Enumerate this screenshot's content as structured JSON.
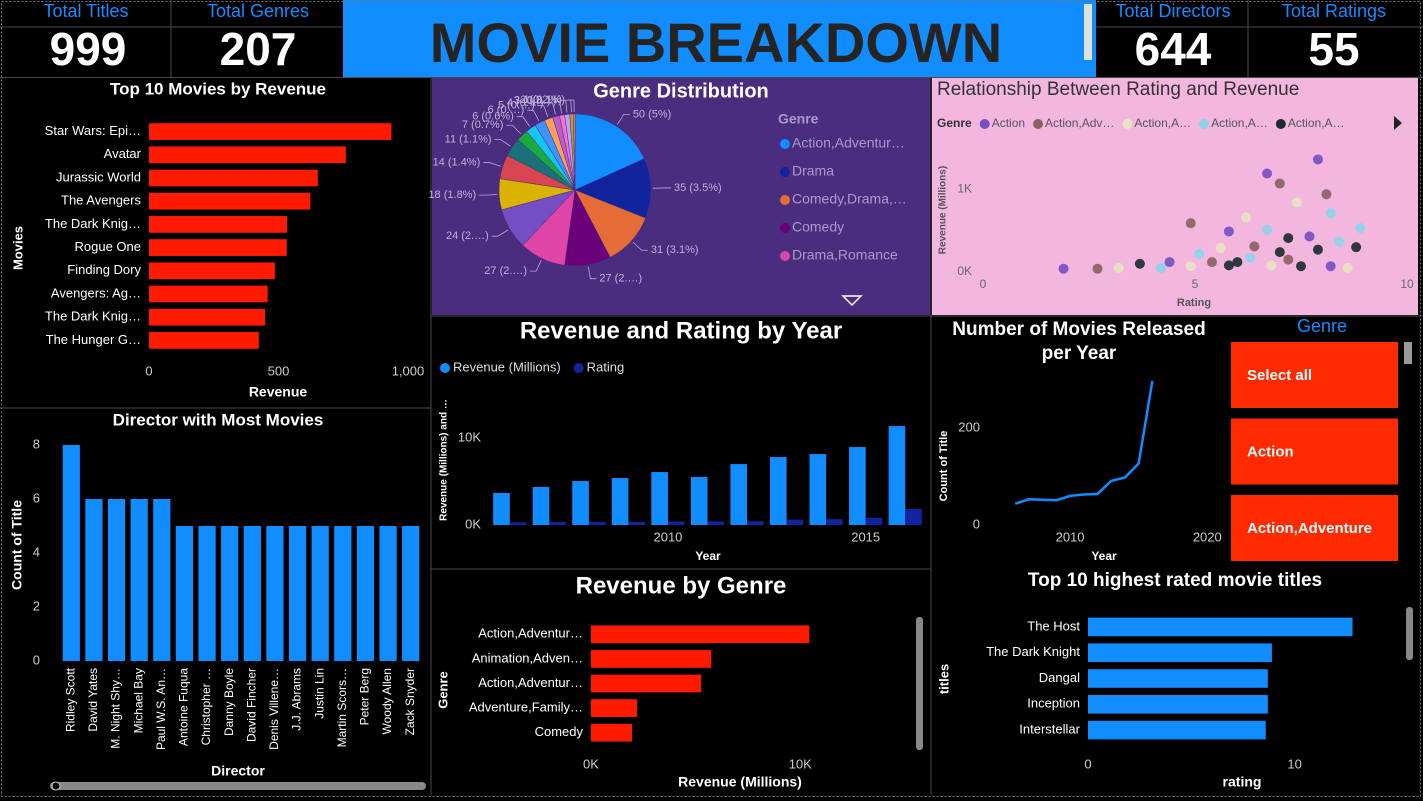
{
  "header": {
    "title": "MOVIE BREAKDOWN"
  },
  "kpis": [
    {
      "label": "Total Titles",
      "value": 999
    },
    {
      "label": "Total Genres",
      "value": 207
    },
    {
      "label": "Total Directors",
      "value": 644
    },
    {
      "label": "Total Ratings",
      "value": 55
    }
  ],
  "slicer": {
    "title": "Genre",
    "items": [
      "Select all",
      "Action",
      "Action,Adventure"
    ]
  },
  "chart_data": [
    {
      "type": "bar",
      "horizontal": true,
      "title": "Top 10 Movies by Revenue",
      "x_label": "Revenue",
      "y_label": "Movies",
      "categories": [
        "Star Wars: Epi…",
        "Avatar",
        "Jurassic World",
        "The Avengers",
        "The Dark Knig…",
        "Rogue One",
        "Finding Dory",
        "Avengers: Ag…",
        "The Dark Knig…",
        "The Hunger G…"
      ],
      "values": [
        936,
        760,
        652,
        623,
        533,
        532,
        486,
        458,
        448,
        424
      ],
      "color": "#ff1a00",
      "xlim": [
        0,
        1000
      ],
      "xticks": [
        0,
        500,
        {
          "value": 1000,
          "label": "1,000"
        }
      ]
    },
    {
      "type": "pie",
      "title": "Genre Distribution",
      "legend_title": "Genre",
      "categories": [
        "Action,Adventur…",
        "Drama",
        "Comedy,Drama,…",
        "Comedy",
        "Drama,Romance",
        null,
        null,
        null,
        null,
        null,
        null,
        null,
        null,
        null,
        null,
        null,
        null,
        null
      ],
      "values": [
        50,
        35,
        31,
        27,
        27,
        24,
        18,
        14,
        11,
        7,
        6,
        6,
        5,
        4,
        3,
        3,
        2,
        1
      ],
      "value_labels": [
        "50 (5%)",
        "35 (3.5%)",
        "31 (3.1%)",
        "27 (2.…)",
        "27 (2.…)",
        "24 (2.…)",
        "18 (1.8%)",
        "14 (1.4%)",
        "11 (1.1%)",
        "7 (0.7%)",
        "6 (0.6%)",
        "6 (0.…)",
        "5 (0.…)",
        "4 (0.…)",
        "3 (0.…)",
        "3 (0.3…)",
        "2 (0.2%)",
        "1 (0.1%)"
      ],
      "colors": [
        "#118dff",
        "#12239e",
        "#e66c37",
        "#6b007b",
        "#e044a7",
        "#744ec2",
        "#d9b300",
        "#d64550",
        "#197278",
        "#1aab40",
        "#15c6f4",
        "#4092ff",
        "#ffa058",
        "#be5dc9",
        "#f472d0",
        "#b5a1ff",
        "#c4a200",
        "#ff8080"
      ]
    },
    {
      "type": "scatter",
      "title": "Relationship Between Rating and Revenue",
      "legend_title": "Genre",
      "x_label": "Rating",
      "y_label": "Revenue (Millions)",
      "xlim": [
        0,
        10
      ],
      "xticks": [
        0,
        5,
        10
      ],
      "ylim": [
        0,
        1450
      ],
      "yticks": [
        {
          "value": 0,
          "label": "0K"
        },
        {
          "value": 1000,
          "label": "1K"
        }
      ],
      "series": [
        {
          "name": "Action",
          "color": "#744ec2",
          "x": [
            7.9,
            6.7,
            1.9,
            5.8,
            7.7,
            4.4,
            8.2
          ],
          "y": [
            1360,
            1190,
            40,
            490,
            430,
            120,
            70
          ]
        },
        {
          "name": "Action,Adv…",
          "color": "#8a6060",
          "x": [
            7.0,
            4.9,
            8.1,
            2.7,
            6.4,
            5.4,
            7.2
          ],
          "y": [
            1070,
            590,
            940,
            40,
            310,
            120,
            150
          ]
        },
        {
          "name": "Action,A…",
          "color": "#e8e3c4",
          "x": [
            6.2,
            7.4,
            3.2,
            5.6,
            4.9,
            6.8,
            8.6
          ],
          "y": [
            660,
            840,
            50,
            290,
            70,
            80,
            50
          ]
        },
        {
          "name": "Action,A…",
          "color": "#8ad4eb",
          "x": [
            8.2,
            8.9,
            6.7,
            5.1,
            4.2,
            6.3,
            8.4
          ],
          "y": [
            710,
            530,
            510,
            220,
            50,
            170,
            370
          ]
        },
        {
          "name": "Action,A…",
          "color": "#1a2b2b",
          "x": [
            8.8,
            7.2,
            3.7,
            5.8,
            7.5,
            7.0,
            7.9,
            6.0
          ],
          "y": [
            300,
            410,
            100,
            80,
            70,
            240,
            270,
            120
          ]
        }
      ]
    },
    {
      "type": "bar",
      "title": "Revenue and Rating by Year",
      "x_label": "Year",
      "y_label": "Revenue (Millions) and …",
      "x": [
        2006,
        2007,
        2008,
        2009,
        2010,
        2011,
        2012,
        2013,
        2014,
        2015,
        2016
      ],
      "xlim": [
        2005.5,
        2016.5
      ],
      "xticks": [
        2010,
        2015
      ],
      "ylim": [
        0,
        13000
      ],
      "yticks": [
        {
          "value": 0,
          "label": "0K"
        },
        {
          "value": 10000,
          "label": "10K"
        }
      ],
      "series": [
        {
          "name": "Revenue (Millions)",
          "color": "#118dff",
          "values": [
            3680,
            4370,
            5060,
            5400,
            6090,
            5520,
            7010,
            7820,
            8160,
            8970,
            11380
          ]
        },
        {
          "name": "Rating",
          "color": "#12239e",
          "values": [
            300,
            350,
            350,
            350,
            400,
            420,
            430,
            620,
            670,
            830,
            1840
          ]
        }
      ]
    },
    {
      "type": "line",
      "title": "Number of Movies Released per Year",
      "x_label": "Year",
      "y_label": "Count of Title",
      "x": [
        2006,
        2007,
        2008,
        2009,
        2010,
        2011,
        2012,
        2013,
        2014,
        2015,
        2016
      ],
      "values": [
        44,
        53,
        52,
        51,
        60,
        63,
        64,
        91,
        98,
        127,
        297
      ],
      "color": "#118dff",
      "xlim": [
        2003,
        2021
      ],
      "xticks": [
        2010,
        2020
      ],
      "ylim": [
        0,
        300
      ],
      "yticks": [
        0,
        200
      ]
    },
    {
      "type": "bar",
      "title": "Director with Most Movies",
      "x_label": "Director",
      "y_label": "Count of Title",
      "categories": [
        "Ridley Scott",
        "David Yates",
        "M. Night Shy…",
        "Michael Bay",
        "Paul W.S. An…",
        "Antoine Fuqua",
        "Christopher …",
        "Danny Boyle",
        "David Fincher",
        "Denis Villene…",
        "J.J. Abrams",
        "Justin Lin",
        "Martin Scors…",
        "Peter Berg",
        "Woody Allen",
        "Zack Snyder"
      ],
      "values": [
        8,
        6,
        6,
        6,
        6,
        5,
        5,
        5,
        5,
        5,
        5,
        5,
        5,
        5,
        5,
        5
      ],
      "color": "#118dff",
      "ylim": [
        0,
        8.5
      ],
      "yticks": [
        0,
        2,
        4,
        6,
        8
      ]
    },
    {
      "type": "bar",
      "horizontal": true,
      "title": "Revenue by Genre",
      "x_label": "Revenue (Millions)",
      "y_label": "Genre",
      "categories": [
        "Action,Adventur…",
        "Animation,Adven…",
        "Action,Adventur…",
        "Adventure,Family…",
        "Comedy"
      ],
      "values": [
        10430,
        5740,
        5260,
        2200,
        1960
      ],
      "color": "#ff1a00",
      "xlim": [
        0,
        14000
      ],
      "xticks": [
        {
          "value": 0,
          "label": "0K"
        },
        {
          "value": 10000,
          "label": "10K"
        }
      ]
    },
    {
      "type": "bar",
      "horizontal": true,
      "title": "Top 10 highest rated movie titles",
      "x_label": "rating",
      "y_label": "titles",
      "categories": [
        "The Host",
        "The Dark Knight",
        "Dangal",
        "Inception",
        "Interstellar"
      ],
      "values": [
        12.8,
        8.9,
        8.7,
        8.7,
        8.6
      ],
      "color": "#118dff",
      "xlim": [
        0,
        15
      ],
      "xticks": [
        0,
        10
      ]
    }
  ]
}
